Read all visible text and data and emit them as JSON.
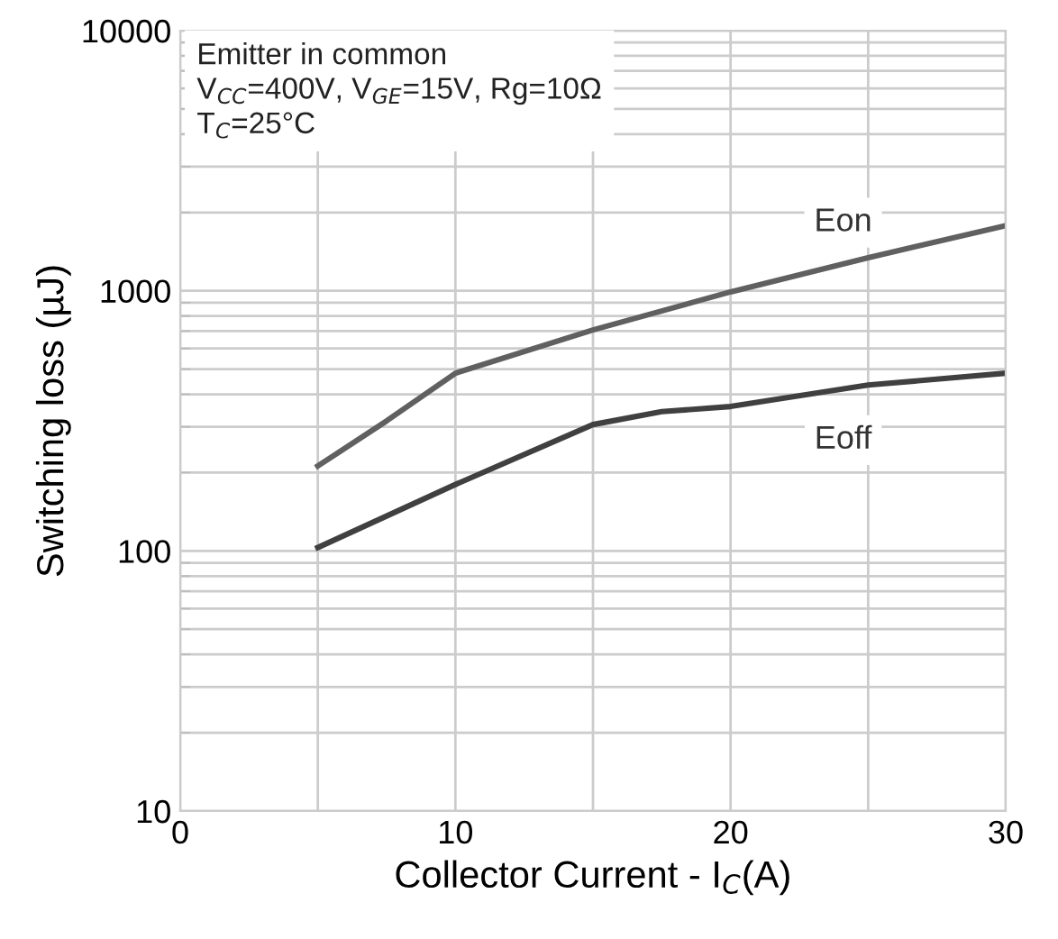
{
  "chart_data": {
    "type": "line",
    "xlabel": "Collector Current - I$_{C}$(A)",
    "ylabel": "Switching loss (µJ)",
    "annotations": [
      "Emitter in common\nV$_{CC}$=400V, V$_{GE}$=15V, Rg=10Ω\nT$_{C}$=25°C"
    ],
    "x": [
      5,
      7.5,
      10,
      15,
      20,
      25,
      30
    ],
    "series": [
      {
        "name": "Eon",
        "color": "#606060",
        "values": [
          212,
          316,
          482,
          707,
          990,
          1340,
          1780
        ]
      },
      {
        "name": "Eoff",
        "color": "#404040",
        "x": [
          5,
          10,
          15,
          17.5,
          20,
          25,
          30
        ],
        "values": [
          103,
          180,
          306,
          343,
          359,
          434,
          482
        ]
      }
    ],
    "log": "y",
    "xlim": [
      0,
      30
    ],
    "ylim": [
      10,
      10000
    ],
    "xticks": [
      0,
      {
        "value": 5,
        "label": null
      },
      10,
      {
        "value": 15,
        "label": null
      },
      20,
      {
        "value": 25,
        "label": null
      },
      30
    ],
    "yticks": [
      10,
      100,
      1000,
      10000
    ],
    "grid": true,
    "legend": false,
    "marker": "none",
    "line_style": "solid"
  }
}
